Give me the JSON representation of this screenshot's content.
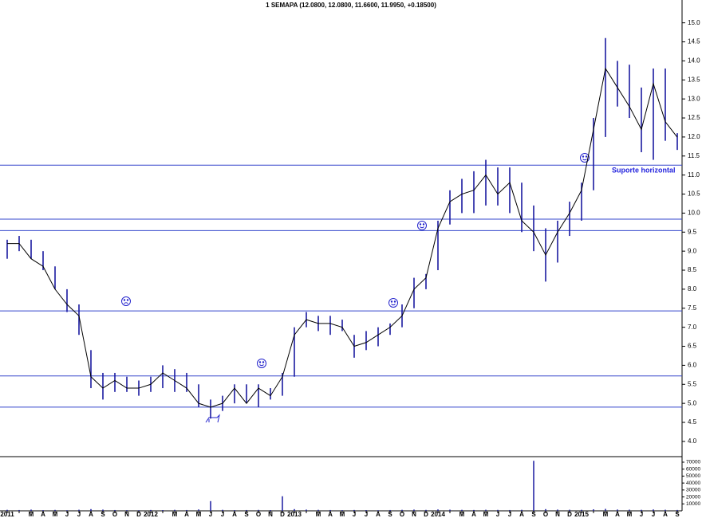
{
  "chart_data": [
    {
      "type": "ohlc",
      "title": "1 SEMAPA (12.0800, 12.0800, 11.6600, 11.9950, +0.18500)",
      "categories": [
        "2011",
        null,
        "M",
        "A",
        "M",
        "J",
        "J",
        "A",
        "S",
        "O",
        "N",
        "D",
        "2012",
        null,
        "M",
        "A",
        "M",
        "J",
        "J",
        "A",
        "S",
        "O",
        "N",
        "D",
        "2013",
        null,
        "M",
        "A",
        "M",
        "J",
        "J",
        "A",
        "S",
        "O",
        "N",
        "D",
        "2014",
        null,
        "M",
        "A",
        "M",
        "J",
        "J",
        "A",
        "S",
        "O",
        "N",
        "D",
        "2015",
        null,
        "M",
        "A",
        "M",
        "J",
        "J",
        "A",
        "S"
      ],
      "high": [
        9.3,
        9.4,
        9.3,
        9.0,
        8.6,
        8.0,
        7.6,
        6.4,
        5.8,
        5.8,
        5.7,
        5.6,
        5.7,
        6.0,
        5.9,
        5.8,
        5.5,
        5.1,
        5.2,
        5.5,
        5.5,
        5.5,
        5.4,
        5.8,
        7.0,
        7.4,
        7.3,
        7.3,
        7.2,
        6.8,
        6.9,
        7.0,
        7.1,
        7.6,
        8.3,
        8.4,
        9.8,
        10.6,
        10.9,
        11.1,
        11.4,
        11.2,
        11.2,
        10.8,
        10.2,
        9.6,
        9.8,
        10.3,
        10.8,
        12.5,
        14.6,
        14.0,
        13.9,
        13.3,
        13.8,
        13.8,
        12.1
      ],
      "low": [
        8.8,
        9.0,
        8.8,
        8.5,
        8.0,
        7.4,
        6.8,
        5.4,
        5.1,
        5.3,
        5.3,
        5.2,
        5.3,
        5.4,
        5.3,
        5.3,
        4.9,
        4.6,
        4.8,
        5.0,
        5.0,
        4.9,
        5.1,
        5.2,
        5.7,
        7.0,
        6.9,
        6.8,
        6.9,
        6.2,
        6.4,
        6.5,
        6.8,
        7.0,
        7.5,
        8.0,
        8.5,
        9.7,
        10.0,
        10.0,
        10.2,
        10.2,
        10.0,
        9.5,
        9.0,
        8.2,
        8.7,
        9.4,
        9.8,
        10.6,
        12.0,
        12.8,
        12.5,
        11.6,
        11.4,
        11.9,
        11.66
      ],
      "close": [
        9.2,
        9.2,
        8.8,
        8.6,
        8.0,
        7.6,
        7.3,
        5.7,
        5.4,
        5.6,
        5.4,
        5.4,
        5.5,
        5.8,
        5.6,
        5.4,
        5.0,
        4.9,
        5.0,
        5.4,
        5.0,
        5.4,
        5.2,
        5.7,
        6.8,
        7.2,
        7.1,
        7.1,
        7.0,
        6.5,
        6.6,
        6.8,
        7.0,
        7.3,
        8.0,
        8.3,
        9.6,
        10.3,
        10.5,
        10.6,
        11.0,
        10.5,
        10.8,
        9.8,
        9.5,
        8.9,
        9.5,
        10.0,
        10.6,
        12.2,
        13.8,
        13.3,
        12.8,
        12.2,
        13.4,
        12.4,
        11.995
      ],
      "color": "#1a1aa0",
      "ylim": [
        3.6,
        15.6
      ],
      "yticks": [
        {
          "value": 4,
          "label": "4.0"
        },
        4.5,
        {
          "value": 5,
          "label": "5.0"
        },
        5.5,
        {
          "value": 6,
          "label": "6.0"
        },
        6.5,
        {
          "value": 7,
          "label": "7.0"
        },
        7.5,
        {
          "value": 8,
          "label": "8.0"
        },
        8.5,
        {
          "value": 9,
          "label": "9.0"
        },
        9.5,
        {
          "value": 10,
          "label": "10.0"
        },
        10.5,
        {
          "value": 11,
          "label": "11.0"
        },
        11.5,
        {
          "value": 12,
          "label": "12.0"
        },
        12.5,
        {
          "value": 13,
          "label": "13.0"
        },
        13.5,
        {
          "value": 14,
          "label": "14.0"
        },
        14.5,
        {
          "value": 15,
          "label": "15.0"
        }
      ],
      "hlines": [
        11.26,
        9.84,
        9.54,
        7.43,
        5.72,
        4.9
      ],
      "hline_color": "#3344cc",
      "annotations": [
        "Suporte horizontal"
      ]
    },
    {
      "type": "bar",
      "values": [
        1500,
        1200,
        1800,
        1000,
        1400,
        900,
        1600,
        2500,
        1800,
        1200,
        1000,
        900,
        1300,
        1100,
        1500,
        1200,
        2000,
        14000,
        1500,
        1000,
        1200,
        1400,
        1100,
        21000,
        2500,
        1800,
        1500,
        1200,
        1000,
        1300,
        1100,
        900,
        1200,
        1500,
        1800,
        1400,
        2000,
        1700,
        1500,
        1300,
        1600,
        1400,
        1200,
        1500,
        72000,
        2500,
        1800,
        1600,
        1500,
        2200,
        2800,
        1900,
        1700,
        1500,
        2000,
        1600,
        1300
      ],
      "color": "#1a1aa0",
      "ylim": [
        0,
        78000
      ],
      "yticks": [
        10000,
        20000,
        30000,
        40000,
        50000,
        60000,
        70000
      ]
    }
  ]
}
